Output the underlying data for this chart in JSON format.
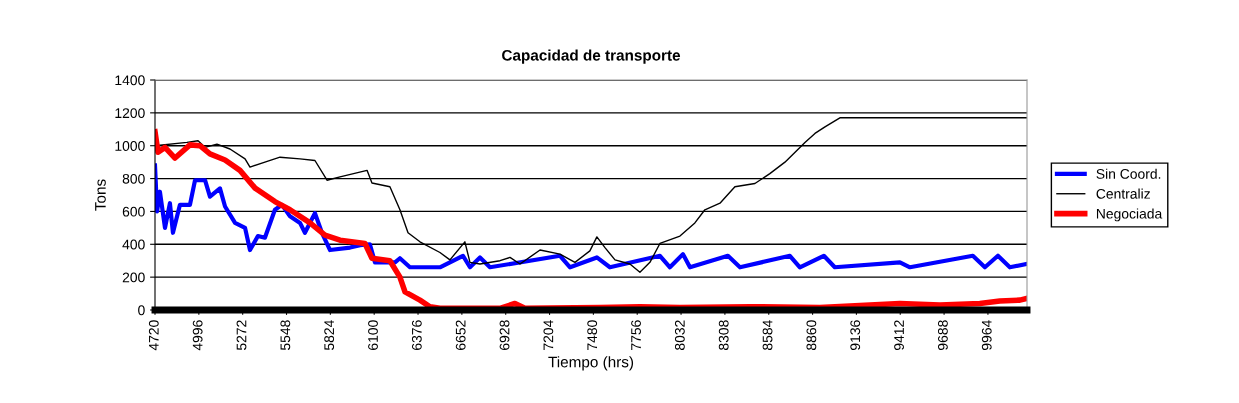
{
  "chart_data": {
    "type": "line",
    "title": "Capacidad de transporte",
    "xlabel": "Tiempo (hrs)",
    "ylabel": "Tons",
    "xlim": [
      4720,
      10210
    ],
    "xticks": [
      4720,
      4996,
      5272,
      5548,
      5824,
      6100,
      6376,
      6652,
      6928,
      7204,
      7480,
      7756,
      8032,
      8308,
      8584,
      8860,
      9136,
      9412,
      9688,
      9964
    ],
    "ylim": [
      0,
      1400
    ],
    "yticks": [
      0,
      200,
      400,
      600,
      800,
      1000,
      1200,
      1400
    ],
    "grid": "y",
    "legend": "right",
    "series": [
      {
        "name": "Sin Coord.",
        "color": "#0000ff",
        "x": [
          4720,
          4733,
          4751,
          4783,
          4814,
          4833,
          4877,
          4940,
          4972,
          5035,
          5066,
          5129,
          5161,
          5224,
          5287,
          5318,
          5368,
          5412,
          5475,
          5519,
          5570,
          5633,
          5664,
          5727,
          5771,
          5822,
          5948,
          6011,
          6073,
          6105,
          6231,
          6262,
          6325,
          6514,
          6659,
          6703,
          6766,
          6829,
          7270,
          7333,
          7502,
          7584,
          7899,
          7962,
          8044,
          8088,
          8327,
          8403,
          8717,
          8780,
          8931,
          9000,
          9410,
          9473,
          9869,
          9945,
          10027,
          10102,
          10209
        ],
        "values": [
          880,
          600,
          720,
          500,
          650,
          470,
          640,
          640,
          790,
          790,
          690,
          740,
          630,
          530,
          500,
          365,
          450,
          440,
          610,
          640,
          570,
          530,
          470,
          590,
          470,
          365,
          380,
          395,
          400,
          290,
          290,
          315,
          260,
          260,
          330,
          260,
          320,
          260,
          330,
          260,
          320,
          260,
          330,
          260,
          340,
          260,
          330,
          260,
          330,
          260,
          330,
          260,
          290,
          260,
          330,
          260,
          330,
          260,
          280
        ]
      },
      {
        "name": "Centraliz",
        "color": "#000000",
        "x": [
          4720,
          4921,
          4991,
          5035,
          5110,
          5192,
          5287,
          5318,
          5412,
          5507,
          5633,
          5727,
          5803,
          5885,
          6055,
          6086,
          6199,
          6262,
          6313,
          6388,
          6514,
          6577,
          6671,
          6703,
          6766,
          6892,
          6955,
          7018,
          7144,
          7270,
          7364,
          7458,
          7502,
          7553,
          7616,
          7710,
          7773,
          7836,
          7899,
          8025,
          8119,
          8182,
          8277,
          8371,
          8497,
          8591,
          8686,
          8812,
          8875,
          8938,
          9032,
          9145,
          10209
        ],
        "values": [
          1000,
          1020,
          1030,
          990,
          1010,
          980,
          920,
          870,
          900,
          930,
          920,
          910,
          790,
          810,
          850,
          773,
          750,
          610,
          470,
          415,
          350,
          305,
          415,
          290,
          280,
          300,
          320,
          280,
          365,
          340,
          290,
          360,
          445,
          380,
          305,
          280,
          230,
          290,
          405,
          450,
          530,
          610,
          650,
          750,
          770,
          830,
          900,
          1020,
          1075,
          1115,
          1170,
          1170,
          1170
        ]
      },
      {
        "name": "Negociada",
        "color": "#ff0000",
        "x": [
          4720,
          4739,
          4783,
          4846,
          4940,
          5003,
          5066,
          5161,
          5255,
          5350,
          5475,
          5570,
          5696,
          5790,
          5885,
          6042,
          6086,
          6199,
          6262,
          6294,
          6388,
          6451,
          6514,
          6892,
          6986,
          7049,
          7521,
          7773,
          8025,
          8466,
          8906,
          9410,
          9662,
          9913,
          10039,
          10165,
          10209
        ],
        "values": [
          1085,
          960,
          990,
          925,
          1005,
          1000,
          950,
          913,
          850,
          742,
          660,
          610,
          530,
          456,
          425,
          405,
          315,
          300,
          200,
          110,
          60,
          20,
          10,
          10,
          40,
          10,
          15,
          20,
          15,
          20,
          15,
          40,
          30,
          40,
          55,
          60,
          70
        ]
      }
    ]
  }
}
